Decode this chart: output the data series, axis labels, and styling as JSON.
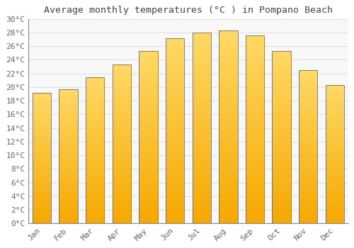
{
  "months": [
    "Jan",
    "Feb",
    "Mar",
    "Apr",
    "May",
    "Jun",
    "Jul",
    "Aug",
    "Sep",
    "Oct",
    "Nov",
    "Dec"
  ],
  "temperatures": [
    19.2,
    19.7,
    21.4,
    23.3,
    25.3,
    27.2,
    28.0,
    28.3,
    27.6,
    25.3,
    22.5,
    20.3
  ],
  "title": "Average monthly temperatures (°C ) in Pompano Beach",
  "ylim": [
    0,
    30
  ],
  "yticks": [
    0,
    2,
    4,
    6,
    8,
    10,
    12,
    14,
    16,
    18,
    20,
    22,
    24,
    26,
    28,
    30
  ],
  "bar_color_bottom": "#F5A800",
  "bar_color_top": "#FFD966",
  "bar_edge_color": "#555555",
  "background_color": "#ffffff",
  "plot_bg_color": "#f8f8f8",
  "grid_color": "#e0e0e0",
  "title_fontsize": 9.5,
  "tick_fontsize": 8,
  "tick_color": "#666666",
  "title_color": "#444444",
  "bar_width": 0.7
}
